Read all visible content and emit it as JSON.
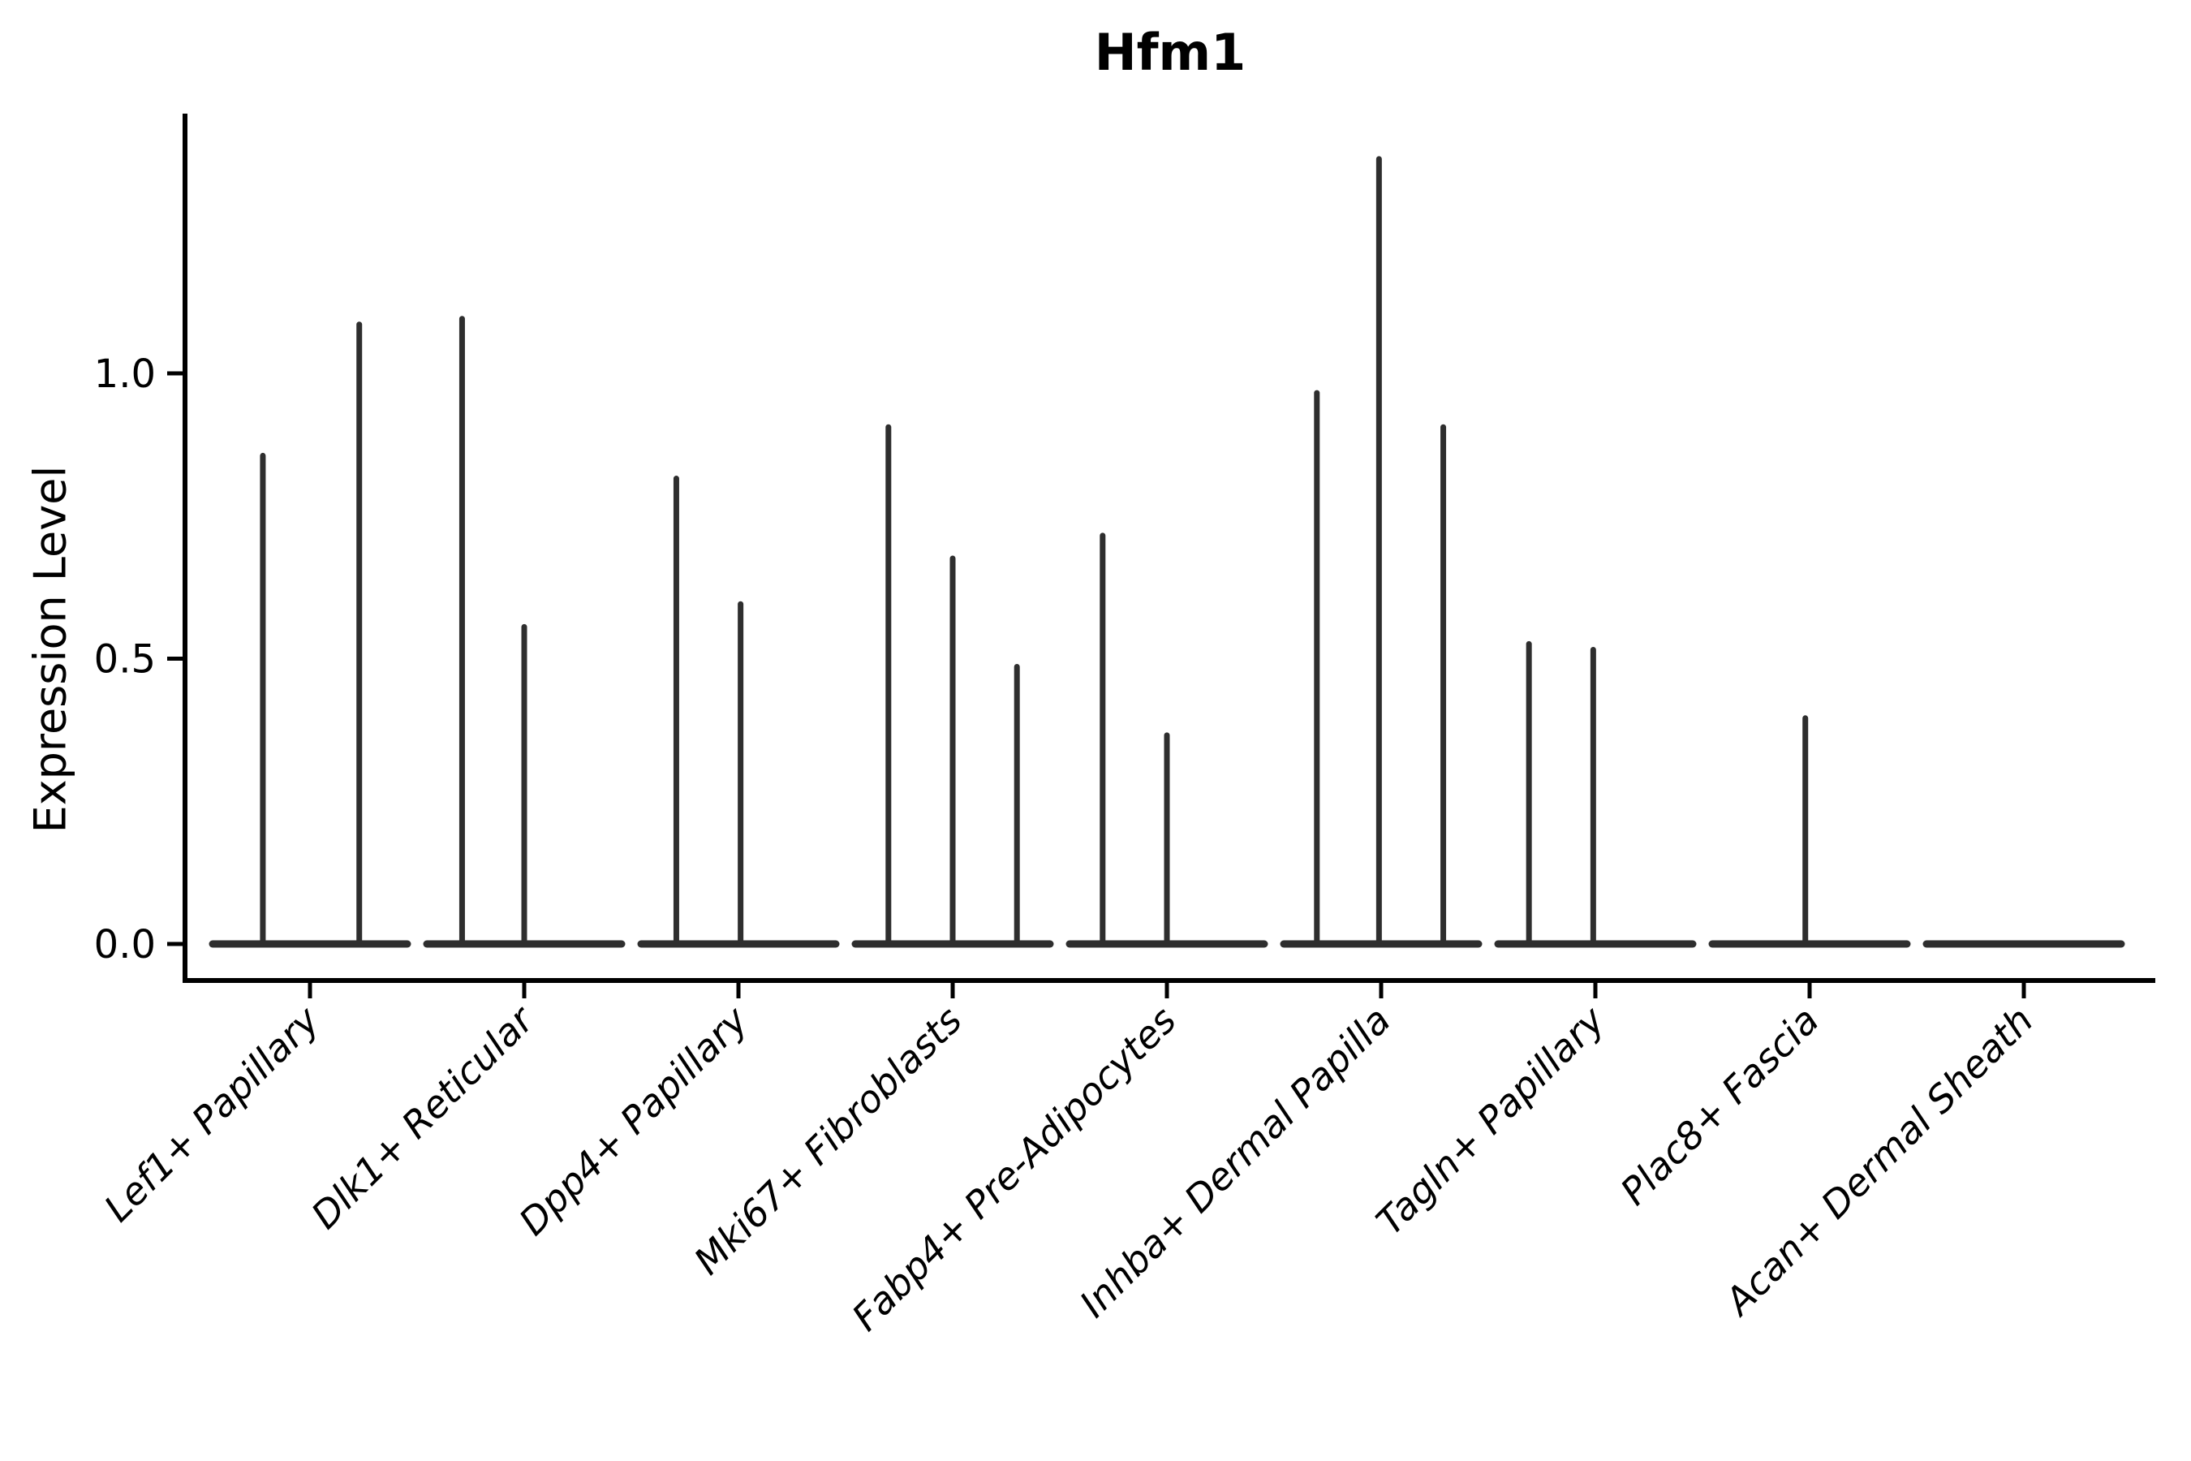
{
  "figure": {
    "title": "Hfm1"
  },
  "chart_data": {
    "type": "violin",
    "title": "Hfm1",
    "xlabel": "",
    "ylabel": "Expression Level",
    "ytick_labels": [
      "0.0",
      "0.5",
      "1.0"
    ],
    "ytick_values": [
      0.0,
      0.5,
      1.0
    ],
    "ylim": [
      -0.07,
      1.45
    ],
    "grid": false,
    "legend": "none",
    "baseline": 0.0,
    "categories": [
      "Lef1+ Papillary",
      "Dlk1+ Reticular",
      "Dpp4+ Papillary",
      "Mki67+ Fibroblasts",
      "Fabp4+ Pre-Adipocytes",
      "Inhba+ Dermal Papilla",
      "Tagln+ Papillary",
      "Plac8+ Fascia",
      "Acan+ Dermal Sheath"
    ],
    "groups": [
      {
        "category": "Lef1+ Papillary",
        "violins": [
          {
            "offset_frac": -0.22,
            "max": 0.86
          },
          {
            "offset_frac": 0.23,
            "max": 1.09
          }
        ]
      },
      {
        "category": "Dlk1+ Reticular",
        "violins": [
          {
            "offset_frac": -0.29,
            "max": 1.1
          },
          {
            "offset_frac": 0.0,
            "max": 0.56
          }
        ]
      },
      {
        "category": "Dpp4+ Papillary",
        "violins": [
          {
            "offset_frac": -0.29,
            "max": 0.82
          },
          {
            "offset_frac": 0.01,
            "max": 0.6
          }
        ]
      },
      {
        "category": "Mki67+ Fibroblasts",
        "violins": [
          {
            "offset_frac": -0.3,
            "max": 0.91
          },
          {
            "offset_frac": 0.0,
            "max": 0.68
          },
          {
            "offset_frac": 0.3,
            "max": 0.49
          }
        ]
      },
      {
        "category": "Fabp4+ Pre-Adipocytes",
        "violins": [
          {
            "offset_frac": -0.3,
            "max": 0.72
          },
          {
            "offset_frac": 0.0,
            "max": 0.37
          }
        ]
      },
      {
        "category": "Inhba+ Dermal Papilla",
        "violins": [
          {
            "offset_frac": -0.3,
            "max": 0.97
          },
          {
            "offset_frac": -0.01,
            "max": 1.38
          },
          {
            "offset_frac": 0.29,
            "max": 0.91
          }
        ]
      },
      {
        "category": "Tagln+ Papillary",
        "violins": [
          {
            "offset_frac": -0.31,
            "max": 0.53
          },
          {
            "offset_frac": -0.01,
            "max": 0.52
          }
        ]
      },
      {
        "category": "Plac8+ Fascia",
        "violins": [
          {
            "offset_frac": -0.02,
            "max": 0.4
          }
        ]
      },
      {
        "category": "Acan+ Dermal Sheath",
        "violins": []
      }
    ],
    "violin_color": "#2e2e2e",
    "axis_color": "#000000"
  }
}
